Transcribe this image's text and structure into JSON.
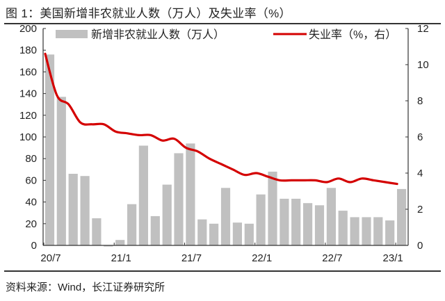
{
  "header": {
    "title": "图 1：美国新增非农就业人数（万人）及失业率（%）"
  },
  "footer": {
    "source": "资料来源：Wind，长江证券研究所"
  },
  "colors": {
    "bar": "#c0c0c0",
    "line": "#d40000",
    "axis": "#333333"
  },
  "chart_data": {
    "type": "bar+line",
    "title": "美国新增非农就业人数（万人）及失业率（%）",
    "xlabel": "",
    "ylabel_left": "新增非农就业人数（万人）",
    "ylabel_right": "失业率（%，右）",
    "x_tick_labels": [
      "20/7",
      "21/1",
      "21/7",
      "22/1",
      "22/7",
      "23/1"
    ],
    "x_tick_indices": [
      0,
      6,
      12,
      18,
      24,
      30
    ],
    "categories": [
      "20/7",
      "20/8",
      "20/9",
      "20/10",
      "20/11",
      "20/12",
      "21/1",
      "21/2",
      "21/3",
      "21/4",
      "21/5",
      "21/6",
      "21/7",
      "21/8",
      "21/9",
      "21/10",
      "21/11",
      "21/12",
      "22/1",
      "22/2",
      "22/3",
      "22/4",
      "22/5",
      "22/6",
      "22/7",
      "22/8",
      "22/9",
      "22/10",
      "22/11",
      "22/12",
      "23/1"
    ],
    "ylim_left": [
      0,
      200
    ],
    "yticks_left": [
      0,
      20,
      40,
      60,
      80,
      100,
      120,
      140,
      160,
      180,
      200
    ],
    "ylim_right": [
      0,
      12
    ],
    "yticks_right": [
      0,
      2,
      4,
      6,
      8,
      10,
      12
    ],
    "legend_position": "top",
    "grid": false,
    "series": [
      {
        "name": "新增非农就业人数（万人）",
        "type": "bar",
        "axis": "left",
        "values": [
          176,
          137,
          66,
          64,
          25,
          -1,
          5,
          38,
          92,
          27,
          56,
          85,
          94,
          24,
          20,
          53,
          21,
          20,
          47,
          68,
          43,
          43,
          39,
          37,
          53,
          32,
          26,
          26,
          26,
          23,
          52
        ]
      },
      {
        "name": "失业率（%，右）",
        "type": "line",
        "axis": "right",
        "values": [
          10.6,
          8.3,
          7.8,
          6.8,
          6.7,
          6.7,
          6.3,
          6.2,
          6.1,
          6.1,
          5.8,
          5.9,
          5.4,
          5.2,
          4.8,
          4.5,
          4.2,
          3.9,
          4.0,
          3.8,
          3.6,
          3.6,
          3.6,
          3.6,
          3.5,
          3.7,
          3.5,
          3.7,
          3.6,
          3.5,
          3.4
        ]
      }
    ]
  }
}
